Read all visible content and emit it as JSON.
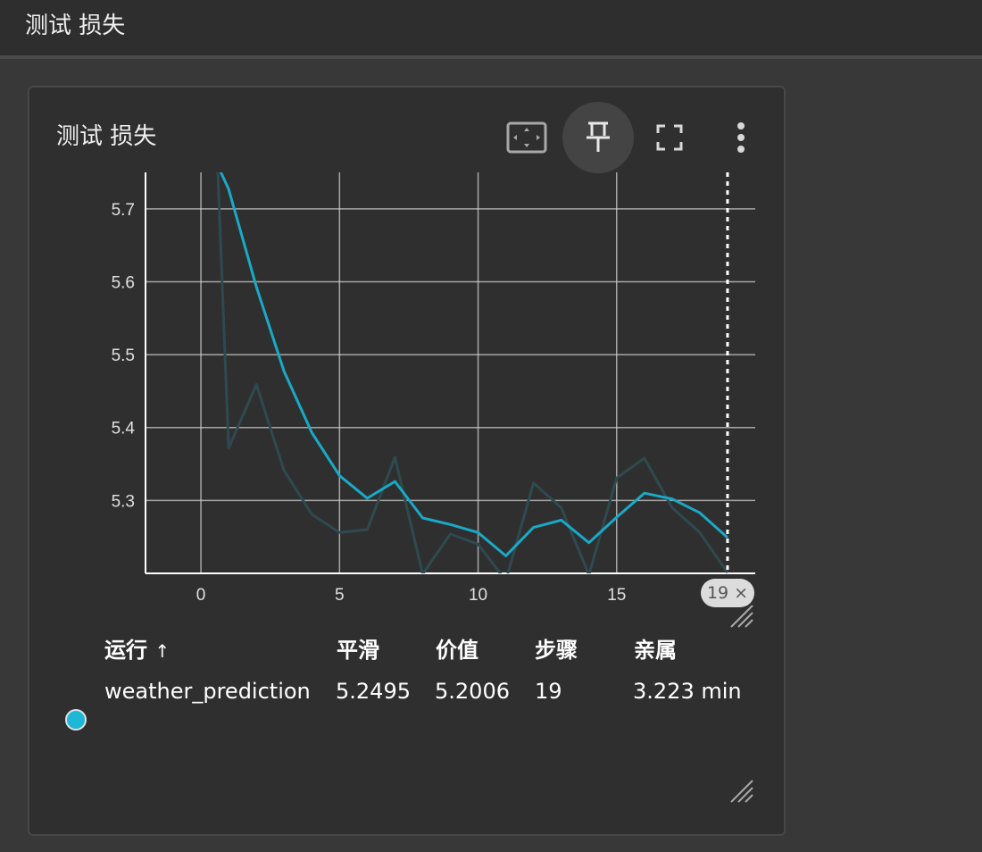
{
  "header": {
    "title": "测试 损失"
  },
  "card": {
    "title": "测试 损失",
    "toolbar": [
      {
        "name": "fit-domain-icon"
      },
      {
        "name": "pin-icon",
        "active": true
      },
      {
        "name": "fullscreen-icon"
      },
      {
        "name": "more-vert-icon"
      }
    ],
    "step_badge": "19",
    "step_badge_close": "×"
  },
  "colors": {
    "smoothed": "#1aa9c6",
    "raw": "#2e4a50",
    "grid": "#d0d0d0",
    "axis": "#ffffff",
    "accent_dot": "#1cb8d6"
  },
  "chart_data": {
    "type": "line",
    "xlim": [
      -2,
      20
    ],
    "ylim": [
      5.2,
      5.75
    ],
    "x_ticks": [
      0,
      5,
      10,
      15
    ],
    "y_ticks": [
      5.3,
      5.4,
      5.5,
      5.6,
      5.7
    ],
    "y_tick_labels": [
      "5.3",
      "5.4",
      "5.5",
      "5.6",
      "5.7"
    ],
    "x_tick_labels": [
      "0",
      "5",
      "10",
      "15"
    ],
    "cursor_step": 19,
    "grid": true,
    "series": [
      {
        "name": "weather_prediction",
        "style": "smoothed",
        "x": [
          0.6,
          1,
          2,
          3,
          4,
          5,
          6,
          7,
          8,
          9,
          10,
          11,
          12,
          13,
          14,
          15,
          16,
          17,
          18,
          19
        ],
        "values": [
          5.76,
          5.727,
          5.593,
          5.477,
          5.393,
          5.334,
          5.303,
          5.326,
          5.276,
          5.267,
          5.256,
          5.224,
          5.263,
          5.273,
          5.242,
          5.277,
          5.31,
          5.302,
          5.283,
          5.249
        ]
      },
      {
        "name": "weather_prediction",
        "style": "raw",
        "x": [
          0.6,
          1,
          2,
          3,
          4,
          5,
          6,
          7,
          8,
          9,
          10,
          11,
          12,
          13,
          14,
          15,
          16,
          17,
          18,
          19
        ],
        "values": [
          5.76,
          5.372,
          5.459,
          5.341,
          5.281,
          5.256,
          5.26,
          5.359,
          5.199,
          5.254,
          5.24,
          5.19,
          5.324,
          5.29,
          5.198,
          5.331,
          5.358,
          5.29,
          5.256,
          5.201
        ]
      }
    ]
  },
  "runs_table": {
    "headers": [
      "运行",
      "平滑",
      "价值",
      "步骤",
      "亲属"
    ],
    "sort_arrow": "↑",
    "rows": [
      {
        "run": "weather_prediction",
        "smoothed": "5.2495",
        "value": "5.2006",
        "step": "19",
        "relative": "3.223 min"
      }
    ]
  }
}
